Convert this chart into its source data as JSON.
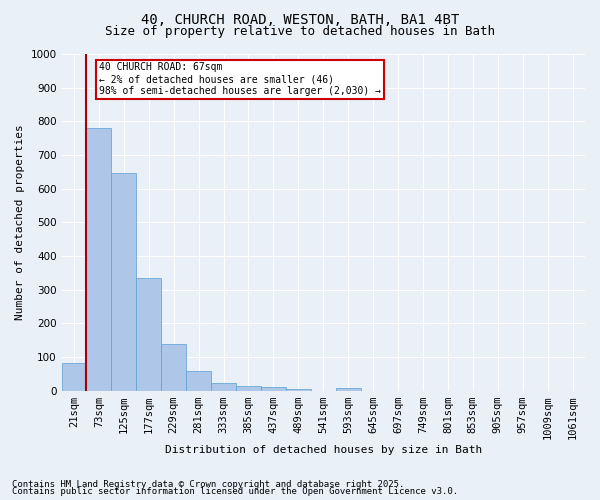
{
  "title1": "40, CHURCH ROAD, WESTON, BATH, BA1 4BT",
  "title2": "Size of property relative to detached houses in Bath",
  "xlabel": "Distribution of detached houses by size in Bath",
  "ylabel": "Number of detached properties",
  "annotation_line1": "40 CHURCH ROAD: 67sqm",
  "annotation_line2": "← 2% of detached houses are smaller (46)",
  "annotation_line3": "98% of semi-detached houses are larger (2,030) →",
  "footer1": "Contains HM Land Registry data © Crown copyright and database right 2025.",
  "footer2": "Contains public sector information licensed under the Open Government Licence v3.0.",
  "bin_labels": [
    "21sqm",
    "73sqm",
    "125sqm",
    "177sqm",
    "229sqm",
    "281sqm",
    "333sqm",
    "385sqm",
    "437sqm",
    "489sqm",
    "541sqm",
    "593sqm",
    "645sqm",
    "697sqm",
    "749sqm",
    "801sqm",
    "853sqm",
    "905sqm",
    "957sqm",
    "1009sqm",
    "1061sqm"
  ],
  "bar_values": [
    82,
    780,
    648,
    335,
    138,
    60,
    22,
    15,
    10,
    5,
    0,
    8,
    0,
    0,
    0,
    0,
    0,
    0,
    0,
    0,
    0
  ],
  "bar_color": "#aec6e8",
  "bar_edge_color": "#5a9fd4",
  "red_line_x": 0.5,
  "ylim": [
    0,
    1000
  ],
  "yticks": [
    0,
    100,
    200,
    300,
    400,
    500,
    600,
    700,
    800,
    900,
    1000
  ],
  "bg_color": "#eaf0f8",
  "grid_color": "#ffffff",
  "annotation_border_color": "#cc0000",
  "title_fontsize": 10,
  "subtitle_fontsize": 9,
  "axis_label_fontsize": 8,
  "tick_fontsize": 7.5,
  "footer_fontsize": 6.5
}
